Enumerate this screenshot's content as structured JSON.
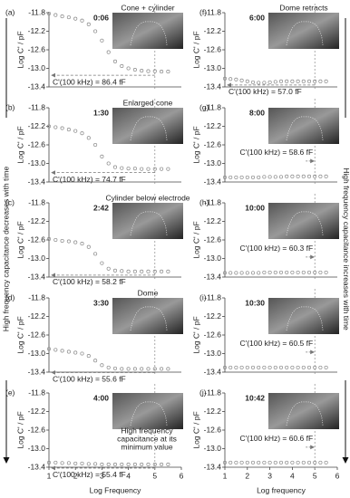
{
  "chart_data": [
    {
      "type": "scatter",
      "panel": "(a)",
      "time": "0:06",
      "image_title": "Cone + cylinder",
      "ylabel": "Log C' / pF",
      "annotation": "C'(100 kHz) = 86.4 fF",
      "side_label": "High frequency capacitance decreases with time",
      "xlim": [
        1,
        6
      ],
      "ylim": [
        -13.4,
        -11.8
      ],
      "yticks": [
        -11.8,
        -12.2,
        -12.6,
        {
          "value": -13,
          "label": "-13.0"
        },
        -13.4
      ],
      "vline": 5,
      "color": "#888888",
      "x": [
        1,
        1.25,
        1.5,
        1.75,
        2,
        2.25,
        2.5,
        2.75,
        3,
        3.25,
        3.5,
        3.75,
        4,
        4.25,
        4.5,
        4.75,
        5,
        5.25,
        5.5
      ],
      "values": [
        -11.82,
        -11.85,
        -11.88,
        -11.9,
        -11.93,
        -11.97,
        -12.05,
        -12.2,
        -12.4,
        -12.65,
        -12.85,
        -12.95,
        -13.0,
        -13.03,
        -13.05,
        -13.06,
        -13.06,
        -13.07,
        -13.07
      ]
    },
    {
      "type": "scatter",
      "panel": "(b)",
      "time": "1:30",
      "image_title": "Enlarged cone",
      "ylabel": "Log C' / pF",
      "annotation": "C'(100 kHz) = 74.7 fF",
      "xlim": [
        1,
        6
      ],
      "ylim": [
        -13.4,
        -11.8
      ],
      "yticks": [
        -11.8,
        -12.2,
        -12.6,
        {
          "value": -13,
          "label": "-13.0"
        },
        -13.4
      ],
      "vline": 5,
      "color": "#888888",
      "x": [
        1,
        1.25,
        1.5,
        1.75,
        2,
        2.25,
        2.5,
        2.75,
        3,
        3.25,
        3.5,
        3.75,
        4,
        4.25,
        4.5,
        4.75,
        5,
        5.25,
        5.5
      ],
      "values": [
        -12.2,
        -12.22,
        -12.24,
        -12.27,
        -12.3,
        -12.35,
        -12.45,
        -12.6,
        -12.85,
        -13.0,
        -13.08,
        -13.1,
        -13.11,
        -13.11,
        -13.12,
        -13.12,
        -13.12,
        -13.12,
        -13.12
      ]
    },
    {
      "type": "scatter",
      "panel": "(c)",
      "time": "2:42",
      "image_title": "Cylinder below electrode",
      "ylabel": "Log C' / pF",
      "annotation": "C'(100 kHz) = 58.2 fF",
      "xlim": [
        1,
        6
      ],
      "ylim": [
        -13.4,
        -11.8
      ],
      "yticks": [
        -11.8,
        -12.2,
        -12.6,
        {
          "value": -13,
          "label": "-13.0"
        },
        -13.4
      ],
      "vline": 5,
      "color": "#888888",
      "x": [
        1,
        1.25,
        1.5,
        1.75,
        2,
        2.25,
        2.5,
        2.75,
        3,
        3.25,
        3.5,
        3.75,
        4,
        4.25,
        4.5,
        4.75,
        5,
        5.25,
        5.5
      ],
      "values": [
        -12.58,
        -12.6,
        -12.62,
        -12.63,
        -12.65,
        -12.68,
        -12.75,
        -12.9,
        -13.1,
        -13.22,
        -13.26,
        -13.27,
        -13.28,
        -13.28,
        -13.28,
        -13.28,
        -13.28,
        -13.28,
        -13.28
      ]
    },
    {
      "type": "scatter",
      "panel": "(d)",
      "time": "3:30",
      "image_title": "Dome",
      "ylabel": "Log C' / pF",
      "annotation": "C'(100 kHz) = 55.6 fF",
      "xlim": [
        1,
        6
      ],
      "ylim": [
        -13.4,
        -11.8
      ],
      "yticks": [
        -11.8,
        -12.2,
        -12.6,
        {
          "value": -13,
          "label": "-13.0"
        },
        -13.4
      ],
      "vline": 5,
      "color": "#888888",
      "x": [
        1,
        1.25,
        1.5,
        1.75,
        2,
        2.25,
        2.5,
        2.75,
        3,
        3.25,
        3.5,
        3.75,
        4,
        4.25,
        4.5,
        4.75,
        5,
        5.25,
        5.5
      ],
      "values": [
        -12.9,
        -12.92,
        -12.94,
        -12.96,
        -12.98,
        -13.0,
        -13.05,
        -13.15,
        -13.25,
        -13.3,
        -13.32,
        -13.33,
        -13.33,
        -13.33,
        -13.33,
        -13.33,
        -13.33,
        -13.33,
        -13.33
      ]
    },
    {
      "type": "scatter",
      "panel": "(e)",
      "time": "4:00",
      "ylabel": "Log C' / pF",
      "annotation": "C'(100 kHz) = 55.4 fF",
      "note": [
        "High frequency",
        "capacitance at its",
        "minimum value"
      ],
      "xlabel": "Log Frequency",
      "xlim": [
        1,
        6
      ],
      "xticks": [
        1,
        2,
        3,
        4,
        5,
        6
      ],
      "ylim": [
        -13.4,
        -11.8
      ],
      "yticks": [
        -11.8,
        -12.2,
        -12.6,
        {
          "value": -13,
          "label": "-13.0"
        },
        -13.4
      ],
      "vline": 5,
      "color": "#888888",
      "x": [
        1,
        1.25,
        1.5,
        1.75,
        2,
        2.25,
        2.5,
        2.75,
        3,
        3.25,
        3.5,
        3.75,
        4,
        4.25,
        4.5,
        4.75,
        5,
        5.25,
        5.5
      ],
      "values": [
        -13.3,
        -13.3,
        -13.31,
        -13.31,
        -13.32,
        -13.32,
        -13.33,
        -13.33,
        -13.34,
        -13.34,
        -13.34,
        -13.34,
        -13.34,
        -13.34,
        -13.34,
        -13.34,
        -13.34,
        -13.34,
        -13.34
      ]
    },
    {
      "type": "scatter",
      "panel": "(f)",
      "time": "6:00",
      "image_title": "Dome retracts",
      "ylabel": "Log C' / pF",
      "annotation": "C'(100 kHz) = 57.0 fF",
      "side_label": "High frequency capacitance increases with time",
      "xlim": [
        1,
        6
      ],
      "ylim": [
        -13.4,
        -11.8
      ],
      "yticks": [
        -11.8,
        -12.2,
        -12.6,
        {
          "value": -13,
          "label": "-13.0"
        },
        -13.4
      ],
      "vline": 5,
      "color": "#888888",
      "x": [
        1,
        1.25,
        1.5,
        1.75,
        2,
        2.25,
        2.5,
        2.75,
        3,
        3.25,
        3.5,
        3.75,
        4,
        4.25,
        4.5,
        4.75,
        5,
        5.25,
        5.5
      ],
      "values": [
        -13.22,
        -13.23,
        -13.24,
        -13.26,
        -13.28,
        -13.3,
        -13.31,
        -13.31,
        -13.3,
        -13.29,
        -13.28,
        -13.28,
        -13.28,
        -13.28,
        -13.28,
        -13.28,
        -13.28,
        -13.28,
        -13.28
      ]
    },
    {
      "type": "scatter",
      "panel": "(g)",
      "time": "8:00",
      "ylabel": "Log C' / pF",
      "annotation": "C'(100 kHz) = 58.6 fF",
      "xlim": [
        1,
        6
      ],
      "ylim": [
        -13.4,
        -11.8
      ],
      "yticks": [
        -11.8,
        -12.2,
        -12.6,
        {
          "value": -13,
          "label": "-13.0"
        },
        -13.4
      ],
      "vline": 5,
      "color": "#888888",
      "x": [
        1,
        1.25,
        1.5,
        1.75,
        2,
        2.25,
        2.5,
        2.75,
        3,
        3.25,
        3.5,
        3.75,
        4,
        4.25,
        4.5,
        4.75,
        5,
        5.25,
        5.5
      ],
      "values": [
        -13.3,
        -13.3,
        -13.3,
        -13.3,
        -13.3,
        -13.3,
        -13.3,
        -13.29,
        -13.29,
        -13.29,
        -13.29,
        -13.28,
        -13.28,
        -13.28,
        -13.28,
        -13.28,
        -13.28,
        -13.28,
        -13.28
      ]
    },
    {
      "type": "scatter",
      "panel": "(h)",
      "time": "10:00",
      "ylabel": "Log C' / pF",
      "annotation": "C'(100 kHz) = 60.3 fF",
      "xlim": [
        1,
        6
      ],
      "ylim": [
        -13.4,
        -11.8
      ],
      "yticks": [
        -11.8,
        -12.2,
        -12.6,
        {
          "value": -13,
          "label": "-13.0"
        },
        -13.4
      ],
      "vline": 5,
      "color": "#888888",
      "x": [
        1,
        1.25,
        1.5,
        1.75,
        2,
        2.25,
        2.5,
        2.75,
        3,
        3.25,
        3.5,
        3.75,
        4,
        4.25,
        4.5,
        4.75,
        5,
        5.25,
        5.5
      ],
      "values": [
        -13.31,
        -13.31,
        -13.31,
        -13.31,
        -13.31,
        -13.31,
        -13.31,
        -13.3,
        -13.3,
        -13.3,
        -13.3,
        -13.3,
        -13.3,
        -13.3,
        -13.3,
        -13.3,
        -13.3,
        -13.3,
        -13.3
      ]
    },
    {
      "type": "scatter",
      "panel": "(i)",
      "time": "10:30",
      "ylabel": "Log C' / pF",
      "annotation": "C'(100 kHz) = 60.5 fF",
      "xlim": [
        1,
        6
      ],
      "ylim": [
        -13.4,
        -11.8
      ],
      "yticks": [
        -11.8,
        -12.2,
        -12.6,
        {
          "value": -13,
          "label": "-13.0"
        },
        -13.4
      ],
      "vline": 5,
      "color": "#888888",
      "x": [
        1,
        1.25,
        1.5,
        1.75,
        2,
        2.25,
        2.5,
        2.75,
        3,
        3.25,
        3.5,
        3.75,
        4,
        4.25,
        4.5,
        4.75,
        5,
        5.25,
        5.5
      ],
      "values": [
        -13.3,
        -13.3,
        -13.3,
        -13.3,
        -13.3,
        -13.3,
        -13.3,
        -13.3,
        -13.3,
        -13.3,
        -13.3,
        -13.3,
        -13.3,
        -13.3,
        -13.3,
        -13.3,
        -13.3,
        -13.3,
        -13.3
      ]
    },
    {
      "type": "scatter",
      "panel": "(j)",
      "time": "10:42",
      "ylabel": "Log C' / pF",
      "annotation": "C'(100 kHz) = 60.6 fF",
      "xlabel": "Log frequency",
      "xlim": [
        1,
        6
      ],
      "xticks": [
        1,
        2,
        3,
        4,
        5,
        6
      ],
      "ylim": [
        -13.4,
        -11.8
      ],
      "yticks": [
        -11.8,
        -12.2,
        -12.6,
        {
          "value": -13,
          "label": "-13.0"
        },
        -13.4
      ],
      "vline": 5,
      "color": "#888888",
      "x": [
        1,
        1.25,
        1.5,
        1.75,
        2,
        2.25,
        2.5,
        2.75,
        3,
        3.25,
        3.5,
        3.75,
        4,
        4.25,
        4.5,
        4.75,
        5,
        5.25,
        5.5
      ],
      "values": [
        -13.3,
        -13.3,
        -13.3,
        -13.3,
        -13.3,
        -13.3,
        -13.3,
        -13.3,
        -13.3,
        -13.3,
        -13.3,
        -13.3,
        -13.3,
        -13.3,
        -13.3,
        -13.3,
        -13.3,
        -13.3,
        -13.3
      ]
    }
  ]
}
